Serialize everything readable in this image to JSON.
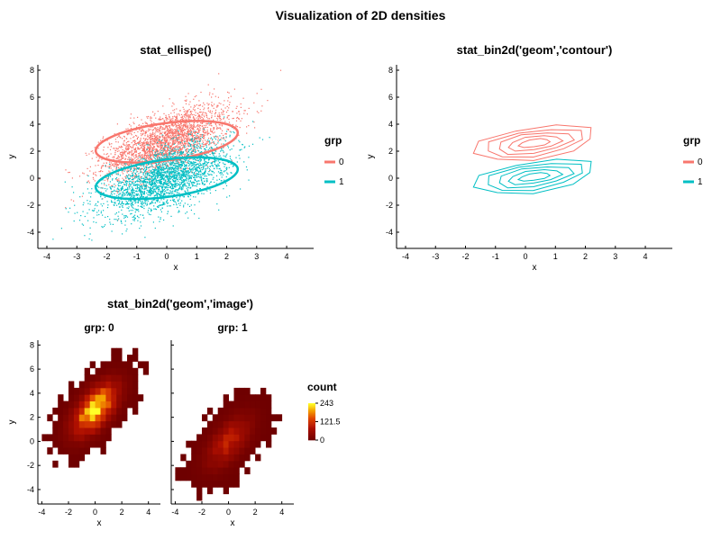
{
  "figure_title": "Visualization of 2D densities",
  "colors": {
    "grp0": "#F8766D",
    "grp1": "#00BFC4",
    "heat_low": "#6b0000",
    "heat_mid": "#c81e00",
    "heat_high": "#ffff20"
  },
  "chart_data": [
    {
      "type": "scatter",
      "title": "stat_ellispe()",
      "xlabel": "x",
      "ylabel": "y",
      "xlim": [
        -4.3,
        4.9
      ],
      "ylim": [
        -5.2,
        8.4
      ],
      "xticks": [
        "-4",
        "-3",
        "-2",
        "-1",
        "0",
        "1",
        "2",
        "3",
        "4"
      ],
      "yticks": [
        "-4",
        "-2",
        "0",
        "2",
        "4",
        "6",
        "8"
      ],
      "legend": {
        "title": "grp",
        "entries": [
          "0",
          "1"
        ],
        "position": "right"
      },
      "series": [
        {
          "name": "0",
          "color": "#F8766D",
          "center": [
            0,
            2.7
          ],
          "sd": [
            1.05,
            1.35
          ],
          "corr": 0.6,
          "ellipse": {
            "center": [
              0,
              2.7
            ],
            "semi_major": 2.5,
            "semi_minor": 1.32,
            "angle_deg": 22
          }
        },
        {
          "name": "1",
          "color": "#00BFC4",
          "center": [
            0,
            0
          ],
          "sd": [
            1.05,
            1.35
          ],
          "corr": 0.6,
          "ellipse": {
            "center": [
              0,
              0
            ],
            "semi_major": 2.5,
            "semi_minor": 1.32,
            "angle_deg": 22
          }
        }
      ]
    },
    {
      "type": "contour",
      "title": "stat_bin2d('geom','contour')",
      "xlabel": "x",
      "ylabel": "y",
      "xlim": [
        -4.3,
        4.9
      ],
      "ylim": [
        -5.2,
        8.4
      ],
      "xticks": [
        "-4",
        "-3",
        "-2",
        "-1",
        "0",
        "1",
        "2",
        "3",
        "4"
      ],
      "yticks": [
        "-4",
        "-2",
        "0",
        "2",
        "4",
        "6",
        "8"
      ],
      "legend": {
        "title": "grp",
        "entries": [
          "0",
          "1"
        ],
        "position": "right"
      },
      "series": [
        {
          "name": "0",
          "color": "#F8766D",
          "center": [
            0.3,
            2.6
          ],
          "levels": [
            {
              "a": 2.15,
              "b": 1.15,
              "angle_deg": 22
            },
            {
              "a": 1.75,
              "b": 0.9,
              "angle_deg": 22
            },
            {
              "a": 1.35,
              "b": 0.7,
              "angle_deg": 22
            },
            {
              "a": 0.95,
              "b": 0.48,
              "angle_deg": 22
            },
            {
              "a": 0.55,
              "b": 0.27,
              "angle_deg": 22
            }
          ]
        },
        {
          "name": "1",
          "color": "#00BFC4",
          "center": [
            0.3,
            0.1
          ],
          "levels": [
            {
              "a": 2.15,
              "b": 1.1,
              "angle_deg": 22
            },
            {
              "a": 1.75,
              "b": 0.88,
              "angle_deg": 22
            },
            {
              "a": 1.35,
              "b": 0.67,
              "angle_deg": 22
            },
            {
              "a": 0.95,
              "b": 0.45,
              "angle_deg": 22
            },
            {
              "a": 0.55,
              "b": 0.25,
              "angle_deg": 22
            }
          ]
        }
      ]
    },
    {
      "type": "heatmap",
      "title": "stat_bin2d('geom','image')",
      "xlabel": "x",
      "ylabel": "y",
      "xlim": [
        -4.3,
        4.9
      ],
      "ylim": [
        -5.2,
        8.4
      ],
      "xticks": [
        "-4",
        "-2",
        "0",
        "2",
        "4"
      ],
      "yticks": [
        "-4",
        "-2",
        "0",
        "2",
        "4",
        "6",
        "8"
      ],
      "bin_size": [
        0.4,
        0.55
      ],
      "facets": [
        {
          "label": "grp: 0",
          "center": [
            0,
            2.7
          ],
          "peak": 243
        },
        {
          "label": "grp: 1",
          "center": [
            0,
            0
          ],
          "peak": 100
        }
      ],
      "colorbar": {
        "title": "count",
        "range": [
          0,
          243
        ],
        "labels": [
          "243",
          "121.5",
          "0"
        ]
      }
    }
  ]
}
